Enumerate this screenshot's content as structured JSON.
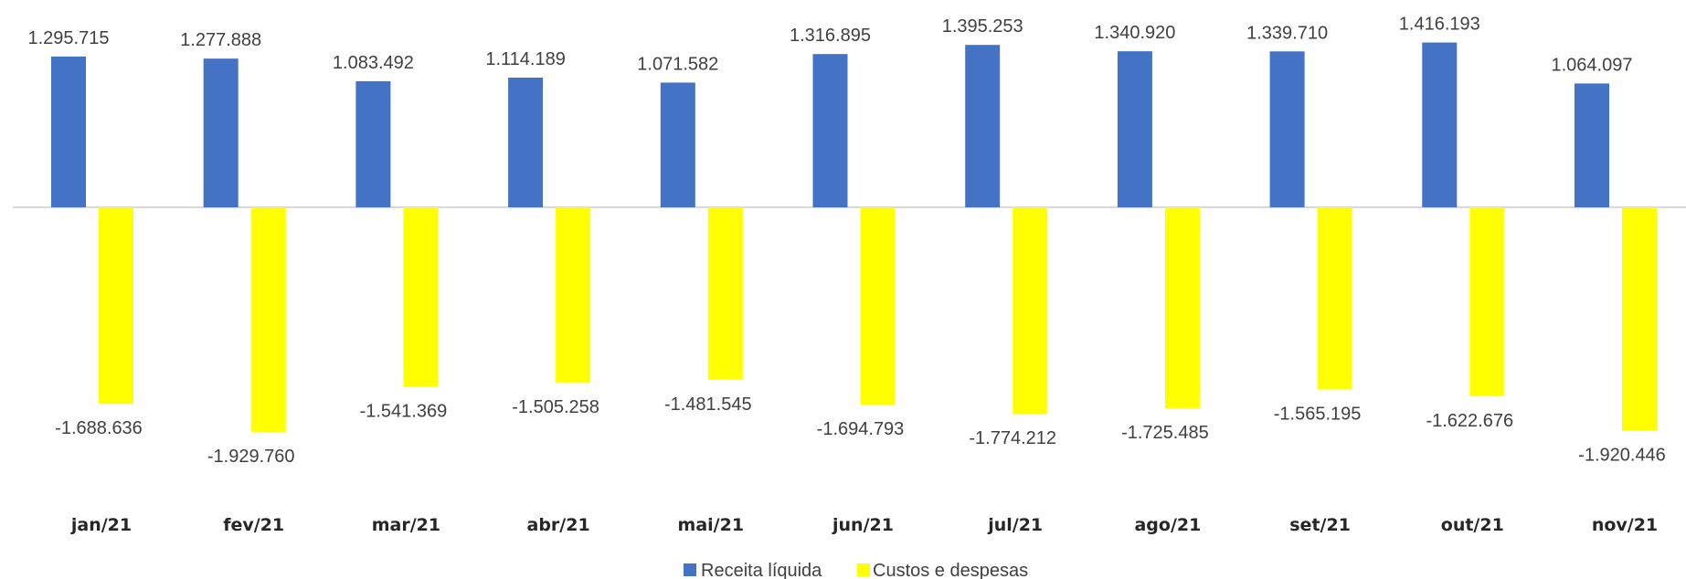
{
  "chart_data": {
    "type": "bar",
    "categories": [
      "jan/21",
      "fev/21",
      "mar/21",
      "abr/21",
      "mai/21",
      "jun/21",
      "jul/21",
      "ago/21",
      "set/21",
      "out/21",
      "nov/21"
    ],
    "series": [
      {
        "name": "Receita líquida",
        "color": "#4472C4",
        "values": [
          1295715,
          1277888,
          1083492,
          1114189,
          1071582,
          1316895,
          1395253,
          1340920,
          1339710,
          1416193,
          1064097
        ],
        "labels": [
          "1.295.715",
          "1.277.888",
          "1.083.492",
          "1.114.189",
          "1.071.582",
          "1.316.895",
          "1.395.253",
          "1.340.920",
          "1.339.710",
          "1.416.193",
          "1.064.097"
        ]
      },
      {
        "name": "Custos e despesas",
        "color": "#FFFF00",
        "values": [
          -1688636,
          -1929760,
          -1541369,
          -1505258,
          -1481545,
          -1694793,
          -1774212,
          -1725485,
          -1565195,
          -1622676,
          -1920446
        ],
        "labels": [
          "-1.688.636",
          "-1.929.760",
          "-1.541.369",
          "-1.505.258",
          "-1.481.545",
          "-1.694.793",
          "-1.774.212",
          "-1.725.485",
          "-1.565.195",
          "-1.622.676",
          "-1.920.446"
        ]
      }
    ],
    "title": "",
    "xlabel": "",
    "ylabel": "",
    "grid": false,
    "legend_position": "bottom",
    "axis_line_color": "#D9D9D9"
  }
}
